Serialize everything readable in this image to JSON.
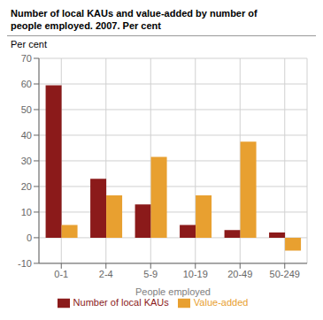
{
  "chart_data": {
    "type": "bar",
    "title": "Number of local KAUs and value-added by number of\npeople employed. 2007. Per cent",
    "ylabel": "Per cent",
    "xlabel": "People employed",
    "categories": [
      "0-1",
      "2-4",
      "5-9",
      "10-19",
      "20-49",
      "50-249"
    ],
    "series": [
      {
        "name": "Number of local KAUs",
        "color": "#8B1A1A",
        "values": [
          59.5,
          23.0,
          13.0,
          5.0,
          3.0,
          2.0
        ]
      },
      {
        "name": "Value-added",
        "color": "#E8A030",
        "values": [
          5.0,
          16.5,
          31.5,
          16.5,
          37.5,
          -5.0
        ]
      }
    ],
    "ylim": [
      -10,
      70
    ],
    "yticks": [
      -10,
      0,
      10,
      20,
      30,
      40,
      50,
      60,
      70
    ],
    "grid": true,
    "legend": "bottom"
  }
}
